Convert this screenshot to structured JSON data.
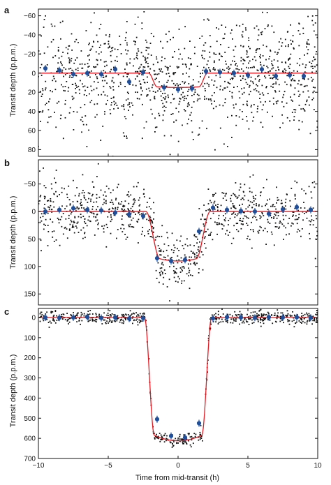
{
  "x_label": "Time from mid-transit (h)",
  "colors": {
    "raw_points": "#111111",
    "binned_points": "#1f4e9a",
    "model_curve": "#e31b23",
    "axis": "#111111"
  },
  "chart_data": [
    {
      "type": "scatter",
      "panel_label": "a",
      "ylabel": "Transit depth (p.p.m.)",
      "xlabel": "",
      "xlim": [
        -10,
        10
      ],
      "ylim_top": -67,
      "ylim_bottom": 87,
      "y_inverted": true,
      "y_ticks": [
        -60,
        -40,
        -20,
        0,
        20,
        40,
        60,
        80
      ],
      "x_ticks": [
        -10,
        -5,
        0,
        5,
        10
      ],
      "show_x_tick_labels": false,
      "model": {
        "depth": 15,
        "t_contact_1": -2.1,
        "t_contact_2": -1.5,
        "t_contact_3": 1.5,
        "t_contact_4": 2.1
      },
      "raw_scatter": {
        "count": 1150,
        "sigma": 28,
        "seed": 1
      },
      "binned": {
        "x": [
          -9.5,
          -8.5,
          -7.5,
          -6.5,
          -5.5,
          -4.5,
          -3.5,
          -2.5,
          -1.0,
          0.0,
          1.0,
          2.0,
          3.0,
          4.0,
          5.0,
          6.0,
          7.0,
          8.0,
          9.0
        ],
        "y": [
          -5,
          -3,
          1,
          0,
          1,
          -4,
          9,
          -1,
          15,
          17,
          16,
          -2,
          -1,
          0,
          2,
          -4,
          3,
          2,
          3
        ]
      }
    },
    {
      "type": "scatter",
      "panel_label": "b",
      "ylabel": "Transit depth (p.p.m.)",
      "xlabel": "",
      "xlim": [
        -10,
        10
      ],
      "ylim_top": -94,
      "ylim_bottom": 170,
      "y_inverted": true,
      "y_ticks": [
        -50,
        0,
        50,
        100,
        150
      ],
      "x_ticks": [
        -10,
        -5,
        0,
        5,
        10
      ],
      "show_x_tick_labels": false,
      "model": {
        "depth": 90,
        "t_contact_1": -2.3,
        "t_contact_2": -1.3,
        "t_contact_3": 1.3,
        "t_contact_4": 2.3
      },
      "raw_scatter": {
        "count": 880,
        "sigma": 27,
        "seed": 2
      },
      "binned": {
        "x": [
          -9.5,
          -8.5,
          -7.5,
          -6.5,
          -5.5,
          -4.5,
          -3.5,
          -2.5,
          -1.5,
          -0.5,
          0.5,
          1.5,
          2.5,
          3.5,
          4.5,
          5.5,
          6.5,
          7.5,
          8.5,
          9.5
        ],
        "y": [
          0,
          -3,
          -6,
          -3,
          -2,
          2,
          5,
          8,
          85,
          90,
          88,
          36,
          -7,
          -3,
          -1,
          0,
          4,
          -4,
          -8,
          -3
        ]
      }
    },
    {
      "type": "scatter",
      "panel_label": "c",
      "ylabel": "Transit depth (p.p.m.)",
      "xlabel": "Time from mid-transit (h)",
      "xlim": [
        -10,
        10
      ],
      "ylim_top": -45,
      "ylim_bottom": 700,
      "y_inverted": true,
      "y_ticks": [
        0,
        100,
        200,
        300,
        400,
        500,
        600,
        700
      ],
      "x_ticks": [
        -10,
        -5,
        0,
        5,
        10
      ],
      "show_x_tick_labels": true,
      "model": {
        "depth": 612,
        "t_contact_1": -2.4,
        "t_contact_2": -1.7,
        "t_contact_3": 1.7,
        "t_contact_4": 2.4
      },
      "raw_scatter": {
        "count": 640,
        "sigma": 17,
        "seed": 3
      },
      "binned": {
        "x": [
          -9.5,
          -8.5,
          -7.5,
          -6.5,
          -5.5,
          -4.5,
          -3.5,
          -2.5,
          -1.5,
          -0.5,
          0.5,
          1.5,
          2.5,
          3.5,
          4.5,
          5.5,
          6.5,
          7.5,
          8.5,
          9.5
        ],
        "y": [
          0,
          1,
          0,
          -3,
          2,
          0,
          5,
          3,
          505,
          588,
          596,
          525,
          4,
          -2,
          0,
          1,
          -2,
          0,
          -1,
          1
        ]
      }
    }
  ]
}
